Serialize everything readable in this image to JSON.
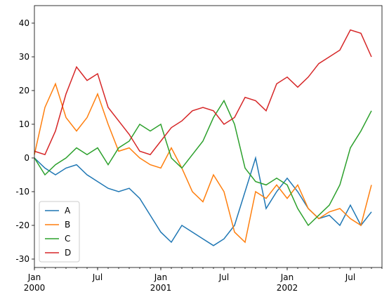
{
  "chart_data": {
    "type": "line",
    "x": [
      "2000-01",
      "2000-02",
      "2000-03",
      "2000-04",
      "2000-05",
      "2000-06",
      "2000-07",
      "2000-08",
      "2000-09",
      "2000-10",
      "2000-11",
      "2000-12",
      "2001-01",
      "2001-02",
      "2001-03",
      "2001-04",
      "2001-05",
      "2001-06",
      "2001-07",
      "2001-08",
      "2001-09",
      "2001-10",
      "2001-11",
      "2001-12",
      "2002-01",
      "2002-02",
      "2002-03",
      "2002-04",
      "2002-05",
      "2002-06",
      "2002-07",
      "2002-08",
      "2002-09"
    ],
    "series": [
      {
        "name": "A",
        "color": "#1f77b4",
        "values": [
          0,
          -3,
          -5,
          -3,
          -2,
          -5,
          -7,
          -9,
          -10,
          -9,
          -12,
          -17,
          -22,
          -25,
          -20,
          -22,
          -24,
          -26,
          -24,
          -20,
          -10,
          0,
          -15,
          -10,
          -6,
          -10,
          -15,
          -18,
          -17,
          -20,
          -14,
          -20,
          -16
        ]
      },
      {
        "name": "B",
        "color": "#ff7f0e",
        "values": [
          1,
          15,
          22,
          12,
          8,
          12,
          19,
          10,
          2,
          3,
          0,
          -2,
          -3,
          3,
          -3,
          -10,
          -13,
          -5,
          -10,
          -22,
          -25,
          -10,
          -12,
          -8,
          -12,
          -8,
          -15,
          -18,
          -16,
          -15,
          -18,
          -20,
          -8
        ]
      },
      {
        "name": "C",
        "color": "#2ca02c",
        "values": [
          0,
          -5,
          -2,
          0,
          3,
          1,
          3,
          -2,
          3,
          5,
          10,
          8,
          10,
          0,
          -3,
          1,
          5,
          12,
          17,
          10,
          -3,
          -7,
          -8,
          -6,
          -8,
          -15,
          -20,
          -17,
          -14,
          -8,
          3,
          8,
          14
        ]
      },
      {
        "name": "D",
        "color": "#d62728",
        "values": [
          2,
          1,
          8,
          19,
          27,
          23,
          25,
          15,
          11,
          7,
          2,
          1,
          5,
          9,
          11,
          14,
          15,
          14,
          10,
          12,
          18,
          17,
          14,
          22,
          24,
          21,
          24,
          28,
          30,
          32,
          38,
          37,
          30
        ]
      }
    ],
    "xlim": [
      "2000-01",
      "2002-10"
    ],
    "xticks": [
      {
        "value": "2000-01",
        "label": "Jan\n2000"
      },
      {
        "value": "2000-07",
        "label": "Jul"
      },
      {
        "value": "2001-01",
        "label": "Jan\n2001"
      },
      {
        "value": "2001-07",
        "label": "Jul"
      },
      {
        "value": "2002-01",
        "label": "Jan\n2002"
      },
      {
        "value": "2002-07",
        "label": "Jul"
      }
    ],
    "ylim": [
      -32.5,
      45.2
    ],
    "yticks": [
      -30,
      -20,
      -10,
      0,
      10,
      20,
      30,
      40
    ],
    "legend": "lower left"
  }
}
